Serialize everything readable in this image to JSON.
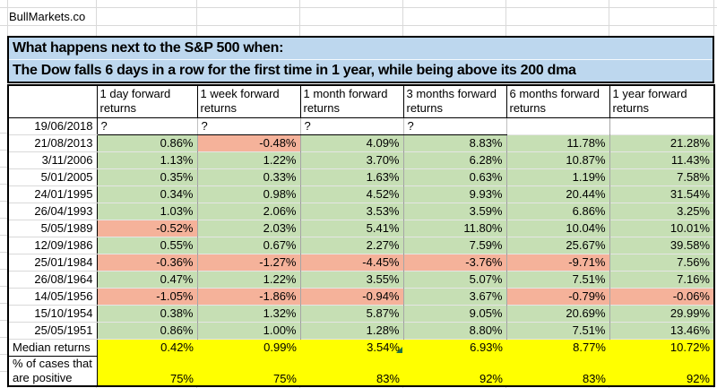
{
  "brand": "BullMarkets.co",
  "title": {
    "line1": "What happens next to the S&P 500 when:",
    "line2": "The Dow falls 6 days in a row for the first time in 1 year, while being above its 200 dma"
  },
  "table": {
    "headers": [
      "1 day forward returns",
      "1 week forward returns",
      "1 month forward returns",
      "3 months forward returns",
      "6 months forward returns",
      "1 year forward returns"
    ],
    "rows": [
      {
        "date": "19/06/2018",
        "values": [
          "?",
          "?",
          "?",
          "?",
          "",
          ""
        ],
        "colors": [
          "w",
          "w",
          "w",
          "w",
          "w",
          "w"
        ]
      },
      {
        "date": "21/08/2013",
        "values": [
          "0.86%",
          "-0.48%",
          "4.09%",
          "8.83%",
          "11.78%",
          "21.28%"
        ],
        "colors": [
          "g",
          "r",
          "g",
          "g",
          "g",
          "g"
        ]
      },
      {
        "date": "3/11/2006",
        "values": [
          "1.13%",
          "1.22%",
          "3.70%",
          "6.28%",
          "10.87%",
          "11.43%"
        ],
        "colors": [
          "g",
          "g",
          "g",
          "g",
          "g",
          "g"
        ]
      },
      {
        "date": "5/01/2005",
        "values": [
          "0.35%",
          "0.33%",
          "1.63%",
          "0.63%",
          "1.19%",
          "7.58%"
        ],
        "colors": [
          "g",
          "g",
          "g",
          "g",
          "g",
          "g"
        ]
      },
      {
        "date": "24/01/1995",
        "values": [
          "0.34%",
          "0.98%",
          "4.52%",
          "9.93%",
          "20.44%",
          "31.54%"
        ],
        "colors": [
          "g",
          "g",
          "g",
          "g",
          "g",
          "g"
        ]
      },
      {
        "date": "26/04/1993",
        "values": [
          "1.03%",
          "2.06%",
          "3.53%",
          "3.59%",
          "6.86%",
          "3.25%"
        ],
        "colors": [
          "g",
          "g",
          "g",
          "g",
          "g",
          "g"
        ]
      },
      {
        "date": "5/05/1989",
        "values": [
          "-0.52%",
          "2.03%",
          "5.41%",
          "11.80%",
          "10.04%",
          "10.01%"
        ],
        "colors": [
          "r",
          "g",
          "g",
          "g",
          "g",
          "g"
        ]
      },
      {
        "date": "12/09/1986",
        "values": [
          "0.55%",
          "0.67%",
          "2.27%",
          "7.59%",
          "25.67%",
          "39.58%"
        ],
        "colors": [
          "g",
          "g",
          "g",
          "g",
          "g",
          "g"
        ]
      },
      {
        "date": "25/01/1984",
        "values": [
          "-0.36%",
          "-1.27%",
          "-4.45%",
          "-3.76%",
          "-9.71%",
          "7.56%"
        ],
        "colors": [
          "r",
          "r",
          "r",
          "r",
          "r",
          "g"
        ]
      },
      {
        "date": "26/08/1964",
        "values": [
          "0.47%",
          "1.22%",
          "3.55%",
          "5.07%",
          "7.51%",
          "7.16%"
        ],
        "colors": [
          "g",
          "g",
          "g",
          "g",
          "g",
          "g"
        ]
      },
      {
        "date": "14/05/1956",
        "values": [
          "-1.05%",
          "-1.86%",
          "-0.94%",
          "3.67%",
          "-0.79%",
          "-0.06%"
        ],
        "colors": [
          "r",
          "r",
          "r",
          "g",
          "r",
          "r"
        ]
      },
      {
        "date": "15/10/1954",
        "values": [
          "0.38%",
          "1.32%",
          "5.87%",
          "9.05%",
          "20.69%",
          "29.99%"
        ],
        "colors": [
          "g",
          "g",
          "g",
          "g",
          "g",
          "g"
        ]
      },
      {
        "date": "25/05/1951",
        "values": [
          "0.86%",
          "1.00%",
          "1.28%",
          "8.80%",
          "7.51%",
          "13.46%"
        ],
        "colors": [
          "g",
          "g",
          "g",
          "g",
          "g",
          "g"
        ]
      }
    ],
    "median": {
      "label": "Median returns",
      "values": [
        "0.42%",
        "0.99%",
        "3.54%",
        "6.93%",
        "8.77%",
        "10.72%"
      ]
    },
    "pct_positive": {
      "label": "% of cases that are positive",
      "values": [
        "75%",
        "75%",
        "83%",
        "92%",
        "83%",
        "92%"
      ]
    }
  },
  "colors": {
    "g": "#C6DFB4",
    "r": "#F5B29A",
    "w": "#FFFFFF",
    "y": "#FFFF00",
    "title_bg": "#BDD7EE",
    "gridline": "#D9D9D9",
    "flag_green": "#1E7145"
  }
}
